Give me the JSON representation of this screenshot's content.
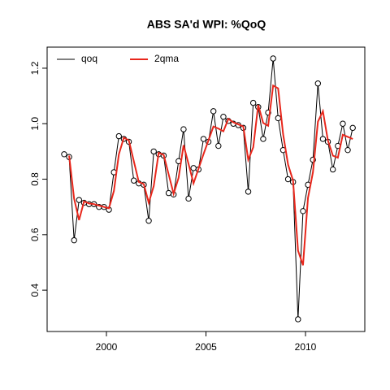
{
  "chart_data": {
    "type": "line",
    "title": "ABS SA'd WPI: %QoQ",
    "x": [
      1997.875,
      1998.125,
      1998.375,
      1998.625,
      1998.875,
      1999.125,
      1999.375,
      1999.625,
      1999.875,
      2000.125,
      2000.375,
      2000.625,
      2000.875,
      2001.125,
      2001.375,
      2001.625,
      2001.875,
      2002.125,
      2002.375,
      2002.625,
      2002.875,
      2003.125,
      2003.375,
      2003.625,
      2003.875,
      2004.125,
      2004.375,
      2004.625,
      2004.875,
      2005.125,
      2005.375,
      2005.625,
      2005.875,
      2006.125,
      2006.375,
      2006.625,
      2006.875,
      2007.125,
      2007.375,
      2007.625,
      2007.875,
      2008.125,
      2008.375,
      2008.625,
      2008.875,
      2009.125,
      2009.375,
      2009.625,
      2009.875,
      2010.125,
      2010.375,
      2010.625,
      2010.875,
      2011.125,
      2011.375,
      2011.625,
      2011.875,
      2012.125,
      2012.375
    ],
    "series": [
      {
        "name": "qoq",
        "color": "#000000",
        "markers": true,
        "values": [
          0.89,
          0.88,
          0.58,
          0.725,
          0.715,
          0.71,
          0.71,
          0.7,
          0.7,
          0.69,
          0.825,
          0.955,
          0.945,
          0.935,
          0.795,
          0.785,
          0.78,
          0.65,
          0.9,
          0.89,
          0.885,
          0.75,
          0.745,
          0.865,
          0.98,
          0.73,
          0.84,
          0.835,
          0.945,
          0.935,
          1.045,
          0.92,
          1.025,
          1.01,
          1.0,
          0.995,
          0.985,
          0.755,
          1.075,
          1.06,
          0.945,
          1.04,
          1.235,
          1.02,
          0.905,
          0.8,
          0.79,
          0.295,
          0.685,
          0.78,
          0.87,
          1.145,
          0.945,
          0.935,
          0.835,
          0.92,
          1.0,
          0.905,
          0.985
        ]
      },
      {
        "name": "2qma",
        "color": "#e8271c",
        "markers": false,
        "values": [
          null,
          0.885,
          0.73,
          0.6525,
          0.72,
          0.7125,
          0.71,
          0.705,
          0.7,
          0.695,
          0.7575,
          0.89,
          0.95,
          0.94,
          0.865,
          0.79,
          0.7825,
          0.715,
          0.775,
          0.895,
          0.8875,
          0.8175,
          0.7475,
          0.805,
          0.9225,
          0.855,
          0.785,
          0.8375,
          0.89,
          0.94,
          0.99,
          0.9825,
          0.9725,
          1.0175,
          1.005,
          0.9975,
          0.99,
          0.87,
          0.915,
          1.0675,
          1.0025,
          0.9925,
          1.1375,
          1.1275,
          0.9625,
          0.8525,
          0.795,
          0.5425,
          0.49,
          0.7325,
          0.825,
          1.0075,
          1.045,
          0.94,
          0.885,
          0.8775,
          0.96,
          0.9525,
          0.945
        ]
      }
    ],
    "xlim": [
      1997.02,
      2012.98
    ],
    "ylim": [
      0.251,
      1.276
    ],
    "xticks": [
      2000,
      2005,
      2010
    ],
    "yticks": [
      0.4,
      0.6,
      0.8,
      {
        "value": 1.0,
        "label": "1.0"
      },
      1.2
    ],
    "legend": "top-left",
    "grid": false
  }
}
